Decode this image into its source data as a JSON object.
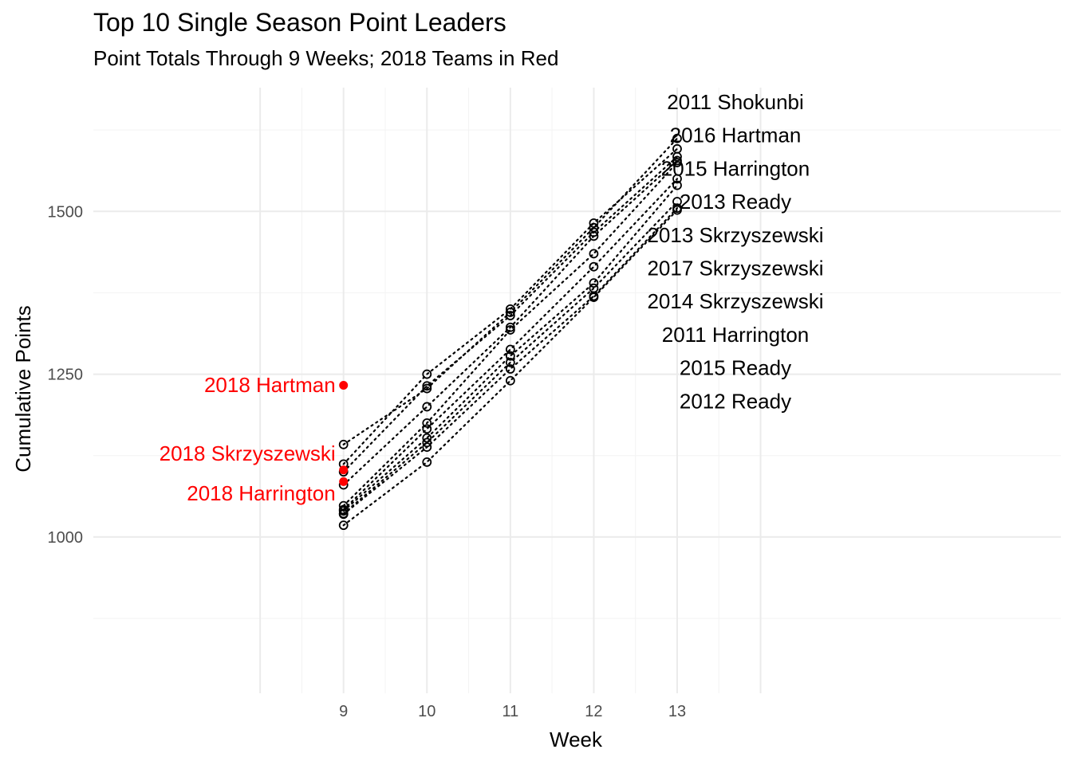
{
  "chart_data": {
    "type": "scatter",
    "title": "Top 10 Single Season Point Leaders",
    "subtitle": "Point Totals Through 9 Weeks; 2018 Teams in Red",
    "xlabel": "Week",
    "ylabel": "Cumulative Points",
    "x_ticks": [
      9,
      10,
      11,
      12,
      13
    ],
    "y_ticks": [
      1000,
      1250,
      1500
    ],
    "xlim": [
      6,
      17.6
    ],
    "ylim": [
      760,
      1690
    ],
    "grid": true,
    "colors": {
      "historical": "#000000",
      "current": "#ff0000",
      "grid_major": "#ebebeb",
      "grid_minor": "#f3f3f3"
    },
    "historical_series": [
      {
        "name": "2011 Shokunbi",
        "values": [
          1142,
          1228,
          1345,
          1475,
          1612
        ]
      },
      {
        "name": "2016 Hartman",
        "values": [
          1112,
          1250,
          1350,
          1482,
          1596
        ]
      },
      {
        "name": "2015 Harrington",
        "values": [
          1100,
          1232,
          1340,
          1468,
          1584
        ]
      },
      {
        "name": "2013 Ready",
        "values": [
          1080,
          1200,
          1322,
          1462,
          1578
        ]
      },
      {
        "name": "2013 Skrzyszewski",
        "values": [
          1048,
          1175,
          1318,
          1435,
          1575
        ]
      },
      {
        "name": "2017 Skrzyszewski",
        "values": [
          1042,
          1166,
          1288,
          1415,
          1550
        ]
      },
      {
        "name": "2014 Skrzyszewski",
        "values": [
          1040,
          1152,
          1278,
          1390,
          1540
        ]
      },
      {
        "name": "2011 Harrington",
        "values": [
          1036,
          1145,
          1268,
          1382,
          1515
        ]
      },
      {
        "name": "2015 Ready",
        "values": [
          1035,
          1138,
          1258,
          1370,
          1505
        ]
      },
      {
        "name": "2012 Ready",
        "values": [
          1018,
          1115,
          1240,
          1368,
          1502
        ]
      }
    ],
    "current_teams": [
      {
        "name": "2018 Hartman",
        "week": 9,
        "value": 1233
      },
      {
        "name": "2018 Skrzyszewski",
        "week": 9,
        "value": 1103
      },
      {
        "name": "2018 Harrington",
        "week": 9,
        "value": 1085
      }
    ]
  }
}
